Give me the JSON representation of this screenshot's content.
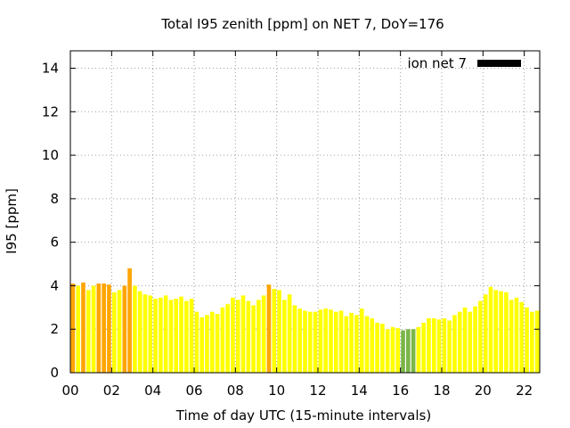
{
  "chart_data": {
    "type": "bar",
    "title": "Total I95 zenith [ppm] on NET 7, DoY=176",
    "xlabel": "Time of day UTC (15-minute intervals)",
    "ylabel": "I95 [ppm]",
    "legend": {
      "label": "ion net 7",
      "color": "#000000",
      "placement": "top-right"
    },
    "xlim": [
      0,
      22.75
    ],
    "ylim": [
      0,
      14.8
    ],
    "xticks": [
      0,
      2,
      4,
      6,
      8,
      10,
      12,
      14,
      16,
      18,
      20,
      22
    ],
    "xtick_labels": [
      "00",
      "02",
      "04",
      "06",
      "08",
      "10",
      "12",
      "14",
      "16",
      "18",
      "20",
      "22"
    ],
    "yticks": [
      0,
      2,
      4,
      6,
      8,
      10,
      12,
      14
    ],
    "ytick_labels": [
      "0",
      "2",
      "4",
      "6",
      "8",
      "10",
      "12",
      "14"
    ],
    "grid": true,
    "bar_width_hours": 0.2,
    "colors": {
      "green": "#7ab648",
      "yellow": "#ffff00",
      "orange": "#ffa500",
      "axis": "#000000",
      "grid": "#a0a0a0"
    },
    "x": [
      0.0,
      0.25,
      0.5,
      0.75,
      1.0,
      1.25,
      1.5,
      1.75,
      2.0,
      2.25,
      2.5,
      2.75,
      3.0,
      3.25,
      3.5,
      3.75,
      4.0,
      4.25,
      4.5,
      4.75,
      5.0,
      5.25,
      5.5,
      5.75,
      6.0,
      6.25,
      6.5,
      6.75,
      7.0,
      7.25,
      7.5,
      7.75,
      8.0,
      8.25,
      8.5,
      8.75,
      9.0,
      9.25,
      9.5,
      9.75,
      10.0,
      10.25,
      10.5,
      10.75,
      11.0,
      11.25,
      11.5,
      11.75,
      12.0,
      12.25,
      12.5,
      12.75,
      13.0,
      13.25,
      13.5,
      13.75,
      14.0,
      14.25,
      14.5,
      14.75,
      15.0,
      15.25,
      15.5,
      15.75,
      16.0,
      16.25,
      16.5,
      16.75,
      17.0,
      17.25,
      17.5,
      17.75,
      18.0,
      18.25,
      18.5,
      18.75,
      19.0,
      19.25,
      19.5,
      19.75,
      20.0,
      20.25,
      20.5,
      20.75,
      21.0,
      21.25,
      21.5,
      21.75,
      22.0,
      22.25,
      22.5
    ],
    "values": [
      4.1,
      4.0,
      4.15,
      3.8,
      4.0,
      4.1,
      4.1,
      4.05,
      3.7,
      3.8,
      4.0,
      4.8,
      4.0,
      3.75,
      3.6,
      3.55,
      3.4,
      3.45,
      3.55,
      3.35,
      3.4,
      3.5,
      3.3,
      3.4,
      2.8,
      2.55,
      2.65,
      2.8,
      2.7,
      3.0,
      3.15,
      3.45,
      3.35,
      3.55,
      3.3,
      3.1,
      3.35,
      3.55,
      4.05,
      3.85,
      3.8,
      3.35,
      3.6,
      3.1,
      2.95,
      2.85,
      2.8,
      2.8,
      2.9,
      2.95,
      2.9,
      2.8,
      2.85,
      2.6,
      2.75,
      2.65,
      2.95,
      2.6,
      2.5,
      2.3,
      2.25,
      2.0,
      2.1,
      2.05,
      1.95,
      2.0,
      2.0,
      2.1,
      2.3,
      2.5,
      2.5,
      2.45,
      2.5,
      2.4,
      2.65,
      2.8,
      3.0,
      2.8,
      3.05,
      3.3,
      3.6,
      3.95,
      3.8,
      3.75,
      3.7,
      3.35,
      3.45,
      3.25,
      3.0,
      2.8,
      2.85
    ],
    "bar_colors": [
      "orange",
      "yellow",
      "orange",
      "yellow",
      "yellow",
      "orange",
      "orange",
      "orange",
      "yellow",
      "yellow",
      "orange",
      "orange",
      "yellow",
      "yellow",
      "yellow",
      "yellow",
      "yellow",
      "yellow",
      "yellow",
      "yellow",
      "yellow",
      "yellow",
      "yellow",
      "yellow",
      "yellow",
      "yellow",
      "yellow",
      "yellow",
      "yellow",
      "yellow",
      "yellow",
      "yellow",
      "yellow",
      "yellow",
      "yellow",
      "yellow",
      "yellow",
      "yellow",
      "orange",
      "yellow",
      "yellow",
      "yellow",
      "yellow",
      "yellow",
      "yellow",
      "yellow",
      "yellow",
      "yellow",
      "yellow",
      "yellow",
      "yellow",
      "yellow",
      "yellow",
      "yellow",
      "yellow",
      "yellow",
      "yellow",
      "yellow",
      "yellow",
      "yellow",
      "yellow",
      "yellow",
      "yellow",
      "yellow",
      "green",
      "green",
      "green",
      "yellow",
      "yellow",
      "yellow",
      "yellow",
      "yellow",
      "yellow",
      "yellow",
      "yellow",
      "yellow",
      "yellow",
      "yellow",
      "yellow",
      "yellow",
      "yellow",
      "yellow",
      "yellow",
      "yellow",
      "yellow",
      "yellow",
      "yellow",
      "yellow",
      "yellow",
      "yellow",
      "yellow"
    ]
  }
}
